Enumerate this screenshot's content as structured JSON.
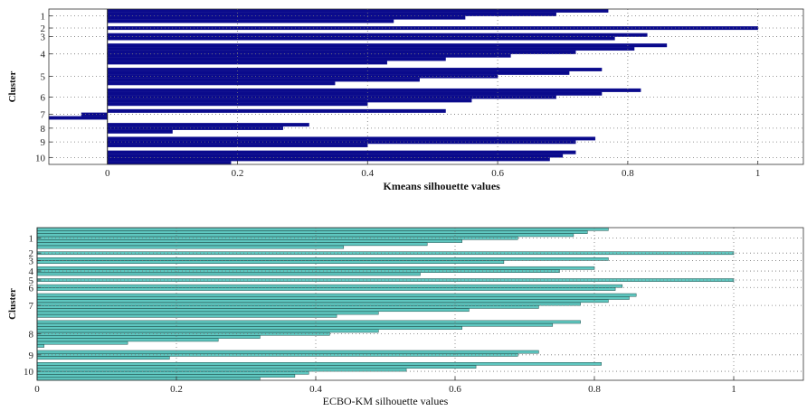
{
  "chart_data": [
    {
      "type": "bar",
      "orientation": "horizontal",
      "xlabel": "Kmeans silhouette values",
      "ylabel": "Cluster",
      "xlim": [
        -0.09,
        1.07
      ],
      "xticks": [
        "0",
        "0.2",
        "0.4",
        "0.6",
        "0.8",
        "1"
      ],
      "yticks": [
        "1",
        "2",
        "3",
        "4",
        "5",
        "6",
        "7",
        "8",
        "9",
        "10"
      ],
      "grid": true,
      "bar_color": "#0a0a8c",
      "clusters": [
        {
          "label": "1",
          "values": [
            0.77,
            0.69,
            0.55,
            0.44
          ]
        },
        {
          "label": "2",
          "values": [
            1.0
          ]
        },
        {
          "label": "3",
          "values": [
            0.83,
            0.78
          ]
        },
        {
          "label": "4",
          "values": [
            0.86,
            0.81,
            0.72,
            0.62,
            0.52,
            0.43
          ]
        },
        {
          "label": "5",
          "values": [
            0.76,
            0.71,
            0.6,
            0.48,
            0.35
          ]
        },
        {
          "label": "6",
          "values": [
            0.82,
            0.76,
            0.69,
            0.56,
            0.4
          ]
        },
        {
          "label": "7",
          "values": [
            0.52,
            -0.04,
            -0.09
          ]
        },
        {
          "label": "8",
          "values": [
            0.31,
            0.27,
            0.1
          ]
        },
        {
          "label": "9",
          "values": [
            0.75,
            0.72,
            0.4
          ]
        },
        {
          "label": "10",
          "values": [
            0.72,
            0.7,
            0.68,
            0.19
          ]
        }
      ]
    },
    {
      "type": "bar",
      "orientation": "horizontal",
      "xlabel": "ECBO-KM silhouette values",
      "ylabel": "Cluster",
      "xlim": [
        0,
        1.1
      ],
      "xticks": [
        "0",
        "0.2",
        "0.4",
        "0.6",
        "0.8",
        "1"
      ],
      "yticks": [
        "1",
        "2",
        "3",
        "4",
        "5",
        "6",
        "7",
        "8",
        "9",
        "10"
      ],
      "grid": true,
      "bar_color": "#5fc7c0",
      "clusters": [
        {
          "label": "1",
          "values": [
            0.82,
            0.79,
            0.77,
            0.69,
            0.61,
            0.56,
            0.44
          ]
        },
        {
          "label": "2",
          "values": [
            1.0
          ]
        },
        {
          "label": "3",
          "values": [
            0.82,
            0.67
          ]
        },
        {
          "label": "4",
          "values": [
            0.8,
            0.75,
            0.55
          ]
        },
        {
          "label": "5",
          "values": [
            1.0
          ]
        },
        {
          "label": "6",
          "values": [
            0.84,
            0.83
          ]
        },
        {
          "label": "7",
          "values": [
            0.86,
            0.85,
            0.82,
            0.78,
            0.72,
            0.62,
            0.49,
            0.43
          ]
        },
        {
          "label": "8",
          "values": [
            0.78,
            0.74,
            0.61,
            0.49,
            0.42,
            0.32,
            0.26,
            0.13,
            0.01
          ]
        },
        {
          "label": "9",
          "values": [
            0.72,
            0.69,
            0.19
          ]
        },
        {
          "label": "10",
          "values": [
            0.81,
            0.63,
            0.53,
            0.39,
            0.37,
            0.32
          ]
        }
      ]
    }
  ]
}
